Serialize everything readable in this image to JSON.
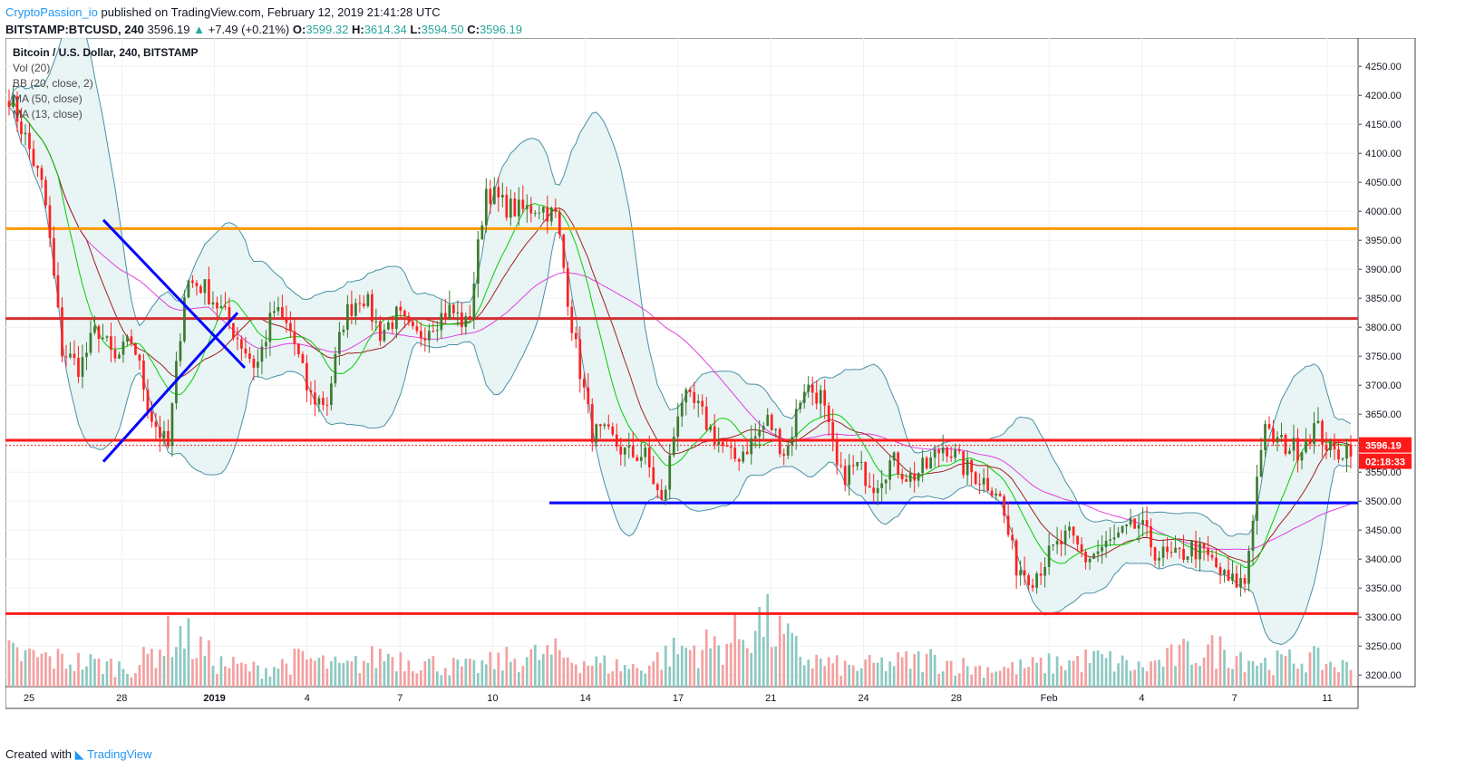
{
  "header": {
    "author": "CryptoPassion_io",
    "published": " published on TradingView.com, February 12, 2019 21:41:28 UTC",
    "symbol": "BITSTAMP:BTCUSD, 240",
    "price": "3596.19",
    "change_arrow": "▲",
    "change": "+7.49 (+0.21%)",
    "o_label": "O:",
    "o_val": "3599.32",
    "h_label": "H:",
    "h_val": "3614.34",
    "l_label": "L:",
    "l_val": "3594.50",
    "c_label": "C:",
    "c_val": "3596.19"
  },
  "legend": {
    "title": "Bitcoin / U.S. Dollar, 240, BITSTAMP",
    "items": [
      "Vol (20)",
      "BB (20, close, 2)",
      "MA (50, close)",
      "MA (13, close)"
    ]
  },
  "footer": {
    "created": "Created with",
    "brand": "TradingView"
  },
  "colors": {
    "up": "#3c7a2f",
    "down": "#ff2020",
    "bb": "#4a90a4",
    "bb_fill": "#e4f1f3",
    "ma50": "#e040e0",
    "ma13": "#00d000",
    "mamid": "#a02020",
    "orange": "#ff9800",
    "darkred": "#d32f2f",
    "red": "#ff1a1a",
    "blue": "#0000ff"
  },
  "chart_data": {
    "type": "candlestick",
    "y_ticks": [
      "4250.00",
      "4200.00",
      "4150.00",
      "4100.00",
      "4050.00",
      "4000.00",
      "3950.00",
      "3900.00",
      "3850.00",
      "3800.00",
      "3750.00",
      "3700.00",
      "3650.00",
      "3600.00",
      "3550.00",
      "3500.00",
      "3450.00",
      "3400.00",
      "3350.00",
      "3300.00",
      "3250.00",
      "3200.00"
    ],
    "ylim": [
      3180,
      4280
    ],
    "x_ticks": [
      "25",
      "28",
      "2019",
      "4",
      "7",
      "10",
      "14",
      "17",
      "21",
      "24",
      "28",
      "Feb",
      "4",
      "7",
      "11"
    ],
    "last_price_label": "3596.19",
    "countdown_label": "02:18:33",
    "horizontal_levels": [
      3970,
      3815,
      3605,
      3497,
      3306
    ],
    "price_path": [
      4200,
      4120,
      4030,
      3760,
      3730,
      3800,
      3740,
      3780,
      3650,
      3590,
      3880,
      3870,
      3830,
      3780,
      3730,
      3830,
      3790,
      3680,
      3670,
      3820,
      3860,
      3790,
      3820,
      3780,
      3810,
      3830,
      3800,
      4040,
      4010,
      4000,
      4010,
      3990,
      3780,
      3620,
      3610,
      3580,
      3580,
      3490,
      3680,
      3660,
      3610,
      3570,
      3600,
      3640,
      3580,
      3700,
      3680,
      3540,
      3560,
      3530,
      3570,
      3540,
      3560,
      3600,
      3560,
      3540,
      3520,
      3390,
      3370,
      3410,
      3440,
      3400,
      3420,
      3440,
      3460,
      3410,
      3400,
      3420,
      3400,
      3360,
      3360,
      3620,
      3600,
      3590,
      3630,
      3580,
      3596
    ],
    "volume_profile": [
      0.35,
      0.3,
      0.25,
      0.2,
      0.6,
      0.25,
      0.18,
      0.3,
      0.2,
      0.35,
      0.25,
      0.2,
      0.3,
      0.35,
      0.25,
      0.2,
      0.4,
      0.45,
      0.7,
      0.3,
      0.2,
      0.25,
      0.3,
      0.2,
      0.2,
      0.25,
      0.3,
      0.2,
      0.35,
      0.4,
      0.25,
      0.3,
      0.2
    ]
  }
}
